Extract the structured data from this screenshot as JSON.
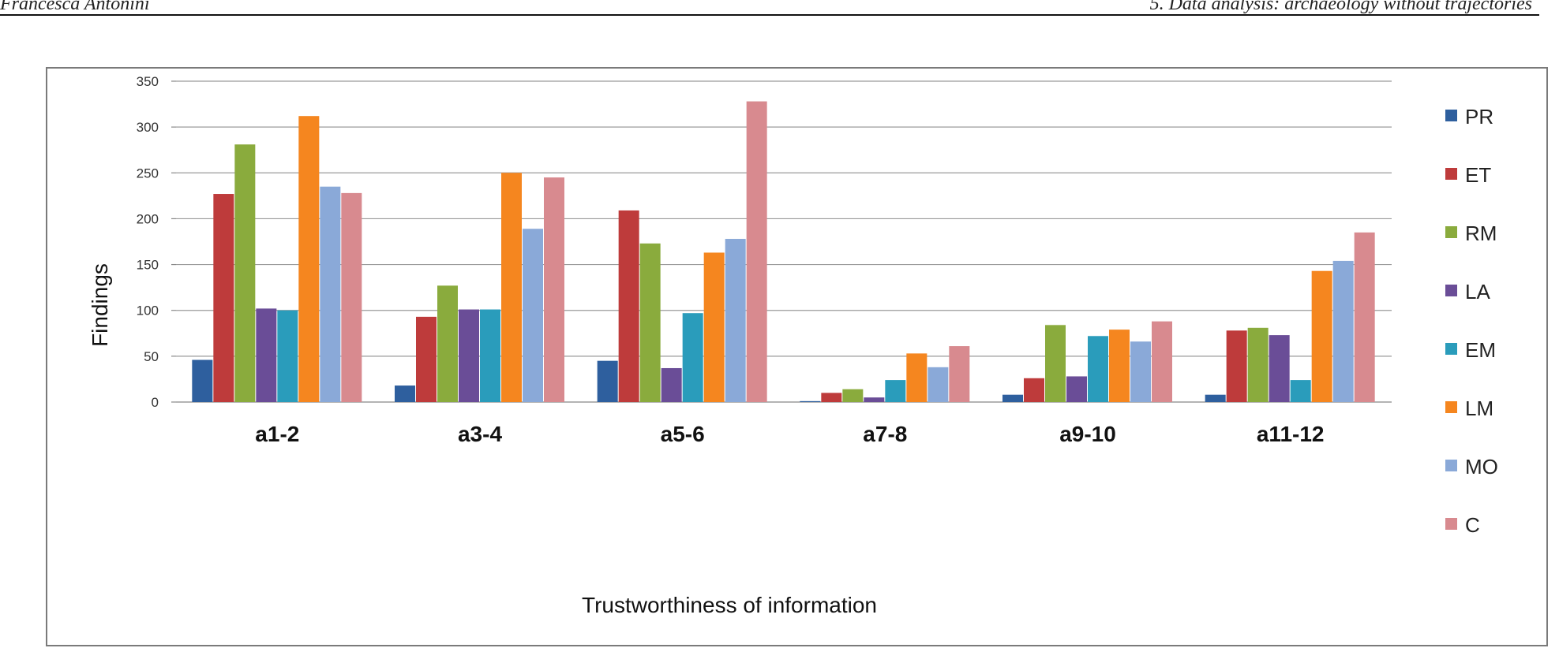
{
  "header": {
    "left": "Francesca Antonini",
    "right": "5. Data analysis: archaeology without trajectories"
  },
  "chart_data": {
    "type": "bar",
    "title": "",
    "xlabel": "Trustworthiness of information",
    "ylabel": "Findings",
    "ylim": [
      0,
      350
    ],
    "yticks": [
      0,
      50,
      100,
      150,
      200,
      250,
      300,
      350
    ],
    "grid": true,
    "legend_position": "right",
    "categories": [
      "a1-2",
      "a3-4",
      "a5-6",
      "a7-8",
      "a9-10",
      "a11-12"
    ],
    "series": [
      {
        "name": "PR",
        "color": "#2e5f9e",
        "values": [
          46,
          18,
          45,
          1,
          8,
          8
        ]
      },
      {
        "name": "ET",
        "color": "#be3b3b",
        "values": [
          227,
          93,
          209,
          10,
          26,
          78
        ]
      },
      {
        "name": "RM",
        "color": "#8aab3d",
        "values": [
          281,
          127,
          173,
          14,
          84,
          81
        ]
      },
      {
        "name": "LA",
        "color": "#6a4d97",
        "values": [
          102,
          101,
          37,
          5,
          28,
          73
        ]
      },
      {
        "name": "EM",
        "color": "#2a9cbb",
        "values": [
          100,
          101,
          97,
          24,
          72,
          24
        ]
      },
      {
        "name": "LM",
        "color": "#f5861f",
        "values": [
          312,
          250,
          163,
          53,
          79,
          143
        ]
      },
      {
        "name": "MO",
        "color": "#8aa9d8",
        "values": [
          235,
          189,
          178,
          38,
          66,
          154
        ]
      },
      {
        "name": "C",
        "color": "#d88a8f",
        "values": [
          228,
          245,
          328,
          61,
          88,
          185
        ]
      }
    ]
  }
}
